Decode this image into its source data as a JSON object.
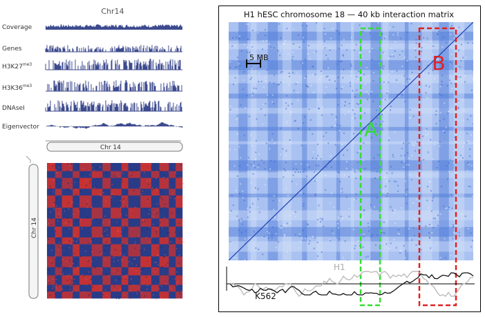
{
  "left_figure": {
    "chromosome_title": "Chr14",
    "track_labels": [
      {
        "text": "Coverage"
      },
      {
        "text": "Genes"
      },
      {
        "text": "H3K27",
        "sup": "me3"
      },
      {
        "text": "H3K36",
        "sup": "me3"
      },
      {
        "text": "DNAseI"
      },
      {
        "text": "Eigenvector"
      }
    ],
    "horizontal_ideogram_label": "Chr 14",
    "vertical_ideogram_label": "Chr 14",
    "heatmap_colors": {
      "positive": "#c83232",
      "negative": "#2a3c88",
      "track": "#3c4a8e"
    }
  },
  "right_figure": {
    "title": "H1 hESC chromosome 18 — 40 kb interaction matrix",
    "scale_bar_label": "5 MB",
    "box_a_label": "A",
    "box_b_label": "B",
    "track_h1_label": "H1",
    "track_k562_label": "K562",
    "colors": {
      "matrix": "#6f95e6",
      "box_a": "#33dd33",
      "box_b": "#e02020",
      "h1_line": "#bbbbbb",
      "k562_line": "#111111"
    }
  }
}
